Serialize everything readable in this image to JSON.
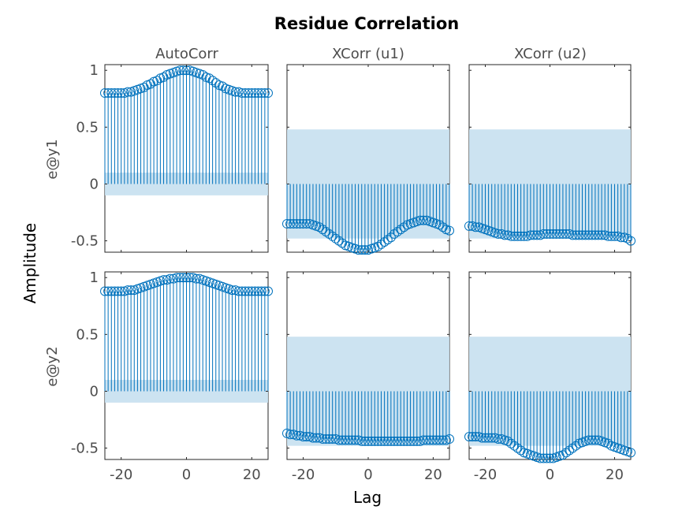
{
  "title": "Residue Correlation",
  "xlabel": "Lag",
  "ylabel": "Amplitude",
  "colors": {
    "stem": "#0072bd",
    "band": "#c6e0f0",
    "axis": "#262626",
    "tick_text": "#4d4d4d"
  },
  "chart_data": {
    "type": "stem",
    "title": "Residue Correlation",
    "xlabel": "Lag",
    "ylabel": "Amplitude",
    "column_titles": [
      "AutoCorr",
      "XCorr (u1)",
      "XCorr (u2)"
    ],
    "row_labels": [
      "e@y1",
      "e@y2"
    ],
    "xlim": [
      -25,
      25
    ],
    "xticks": [
      -20,
      0,
      20
    ],
    "xtick_labels": [
      "-20",
      "0",
      "20"
    ],
    "ylim": [
      -0.6,
      1.05
    ],
    "yticks": [
      -0.5,
      0,
      0.5,
      1
    ],
    "ytick_labels": [
      "-0.5",
      "0",
      "0.5",
      "1"
    ],
    "lags": [
      -25,
      -24,
      -23,
      -22,
      -21,
      -20,
      -19,
      -18,
      -17,
      -16,
      -15,
      -14,
      -13,
      -12,
      -11,
      -10,
      -9,
      -8,
      -7,
      -6,
      -5,
      -4,
      -3,
      -2,
      -1,
      0,
      1,
      2,
      3,
      4,
      5,
      6,
      7,
      8,
      9,
      10,
      11,
      12,
      13,
      14,
      15,
      16,
      17,
      18,
      19,
      20,
      21,
      22,
      23,
      24,
      25
    ],
    "panels": [
      {
        "row": "e@y1",
        "column": "AutoCorr",
        "confidence_band": [
          -0.1,
          0.1
        ],
        "values": [
          0.8,
          0.8,
          0.8,
          0.8,
          0.8,
          0.8,
          0.8,
          0.81,
          0.81,
          0.82,
          0.83,
          0.84,
          0.85,
          0.87,
          0.88,
          0.9,
          0.91,
          0.93,
          0.94,
          0.96,
          0.97,
          0.98,
          0.99,
          1.0,
          1.0,
          1.0,
          1.0,
          0.99,
          0.98,
          0.97,
          0.96,
          0.94,
          0.93,
          0.91,
          0.89,
          0.87,
          0.86,
          0.84,
          0.83,
          0.82,
          0.81,
          0.81,
          0.8,
          0.8,
          0.8,
          0.8,
          0.8,
          0.8,
          0.8,
          0.8,
          0.8
        ]
      },
      {
        "row": "e@y1",
        "column": "XCorr (u1)",
        "confidence_band": [
          -0.48,
          0.48
        ],
        "values": [
          -0.35,
          -0.35,
          -0.35,
          -0.35,
          -0.35,
          -0.35,
          -0.35,
          -0.35,
          -0.36,
          -0.37,
          -0.38,
          -0.4,
          -0.42,
          -0.44,
          -0.46,
          -0.48,
          -0.5,
          -0.52,
          -0.54,
          -0.55,
          -0.56,
          -0.57,
          -0.58,
          -0.58,
          -0.58,
          -0.58,
          -0.57,
          -0.56,
          -0.55,
          -0.53,
          -0.51,
          -0.49,
          -0.47,
          -0.44,
          -0.42,
          -0.4,
          -0.38,
          -0.36,
          -0.35,
          -0.34,
          -0.33,
          -0.32,
          -0.32,
          -0.32,
          -0.33,
          -0.34,
          -0.35,
          -0.36,
          -0.38,
          -0.4,
          -0.41
        ]
      },
      {
        "row": "e@y1",
        "column": "XCorr (u2)",
        "confidence_band": [
          -0.48,
          0.48
        ],
        "values": [
          -0.37,
          -0.37,
          -0.38,
          -0.38,
          -0.39,
          -0.4,
          -0.41,
          -0.42,
          -0.43,
          -0.44,
          -0.44,
          -0.45,
          -0.45,
          -0.46,
          -0.46,
          -0.46,
          -0.46,
          -0.46,
          -0.46,
          -0.45,
          -0.45,
          -0.45,
          -0.45,
          -0.44,
          -0.44,
          -0.44,
          -0.44,
          -0.44,
          -0.44,
          -0.44,
          -0.44,
          -0.44,
          -0.45,
          -0.45,
          -0.45,
          -0.45,
          -0.45,
          -0.45,
          -0.45,
          -0.45,
          -0.45,
          -0.45,
          -0.45,
          -0.46,
          -0.46,
          -0.46,
          -0.46,
          -0.47,
          -0.47,
          -0.48,
          -0.5
        ]
      },
      {
        "row": "e@y2",
        "column": "AutoCorr",
        "confidence_band": [
          -0.1,
          0.1
        ],
        "values": [
          0.88,
          0.88,
          0.88,
          0.88,
          0.88,
          0.88,
          0.88,
          0.89,
          0.89,
          0.89,
          0.9,
          0.91,
          0.92,
          0.93,
          0.94,
          0.95,
          0.96,
          0.97,
          0.98,
          0.98,
          0.99,
          0.99,
          1.0,
          1.0,
          1.0,
          1.0,
          1.0,
          1.0,
          0.99,
          0.99,
          0.98,
          0.97,
          0.96,
          0.95,
          0.94,
          0.93,
          0.92,
          0.91,
          0.9,
          0.89,
          0.89,
          0.88,
          0.88,
          0.88,
          0.88,
          0.88,
          0.88,
          0.88,
          0.88,
          0.88,
          0.88
        ]
      },
      {
        "row": "e@y2",
        "column": "XCorr (u1)",
        "confidence_band": [
          -0.48,
          0.48
        ],
        "values": [
          -0.37,
          -0.38,
          -0.38,
          -0.39,
          -0.39,
          -0.4,
          -0.4,
          -0.4,
          -0.41,
          -0.41,
          -0.41,
          -0.42,
          -0.42,
          -0.42,
          -0.42,
          -0.42,
          -0.43,
          -0.43,
          -0.43,
          -0.43,
          -0.43,
          -0.43,
          -0.43,
          -0.44,
          -0.44,
          -0.44,
          -0.44,
          -0.44,
          -0.44,
          -0.44,
          -0.44,
          -0.44,
          -0.44,
          -0.44,
          -0.44,
          -0.44,
          -0.44,
          -0.44,
          -0.44,
          -0.44,
          -0.44,
          -0.44,
          -0.43,
          -0.43,
          -0.43,
          -0.43,
          -0.43,
          -0.43,
          -0.43,
          -0.43,
          -0.42
        ]
      },
      {
        "row": "e@y2",
        "column": "XCorr (u2)",
        "confidence_band": [
          -0.48,
          0.48
        ],
        "values": [
          -0.4,
          -0.4,
          -0.4,
          -0.4,
          -0.41,
          -0.41,
          -0.41,
          -0.41,
          -0.41,
          -0.42,
          -0.42,
          -0.43,
          -0.44,
          -0.46,
          -0.48,
          -0.5,
          -0.52,
          -0.54,
          -0.55,
          -0.56,
          -0.57,
          -0.58,
          -0.59,
          -0.59,
          -0.59,
          -0.59,
          -0.59,
          -0.58,
          -0.57,
          -0.56,
          -0.54,
          -0.52,
          -0.5,
          -0.48,
          -0.46,
          -0.45,
          -0.44,
          -0.43,
          -0.43,
          -0.43,
          -0.43,
          -0.44,
          -0.45,
          -0.46,
          -0.48,
          -0.49,
          -0.5,
          -0.51,
          -0.52,
          -0.53,
          -0.54
        ]
      }
    ]
  }
}
